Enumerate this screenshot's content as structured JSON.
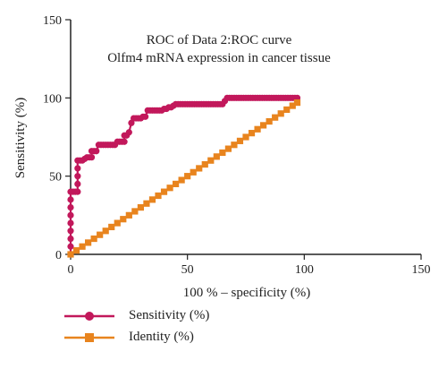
{
  "chart_data": {
    "type": "line",
    "title": [
      "ROC of Data 2:ROC curve",
      "Olfm4 mRNA expression in cancer tissue"
    ],
    "xlabel": "100 % – specificity (%)",
    "ylabel": "Sensitivity (%)",
    "xlim": [
      0,
      150
    ],
    "ylim": [
      0,
      150
    ],
    "x_ticks": [
      0,
      50,
      100,
      150
    ],
    "y_ticks": [
      0,
      50,
      100,
      150
    ],
    "grid": false,
    "legend_position": "bottom-left",
    "series": [
      {
        "name": "Sensitivity (%)",
        "color": "#c2185b",
        "marker": "circle",
        "points": [
          [
            0,
            0
          ],
          [
            0,
            5
          ],
          [
            0,
            10
          ],
          [
            0,
            15
          ],
          [
            0,
            20
          ],
          [
            0,
            25
          ],
          [
            0,
            30
          ],
          [
            0,
            35
          ],
          [
            0,
            40
          ],
          [
            1,
            40
          ],
          [
            2,
            40
          ],
          [
            3,
            40
          ],
          [
            3,
            45
          ],
          [
            3,
            50
          ],
          [
            3,
            55
          ],
          [
            3,
            60
          ],
          [
            4,
            60
          ],
          [
            5,
            60
          ],
          [
            6,
            61
          ],
          [
            7,
            62
          ],
          [
            8,
            62
          ],
          [
            9,
            62
          ],
          [
            9,
            66
          ],
          [
            10,
            66
          ],
          [
            11,
            66
          ],
          [
            12,
            70
          ],
          [
            13,
            70
          ],
          [
            14,
            70
          ],
          [
            15,
            70
          ],
          [
            16,
            70
          ],
          [
            17,
            70
          ],
          [
            18,
            70
          ],
          [
            19,
            70
          ],
          [
            20,
            72
          ],
          [
            21,
            72
          ],
          [
            22,
            72
          ],
          [
            23,
            72
          ],
          [
            23,
            76
          ],
          [
            24,
            76
          ],
          [
            25,
            78
          ],
          [
            26,
            84
          ],
          [
            27,
            87
          ],
          [
            28,
            87
          ],
          [
            29,
            87
          ],
          [
            30,
            87
          ],
          [
            31,
            88
          ],
          [
            32,
            88
          ],
          [
            33,
            92
          ],
          [
            34,
            92
          ],
          [
            35,
            92
          ],
          [
            36,
            92
          ],
          [
            37,
            92
          ],
          [
            38,
            92
          ],
          [
            39,
            92
          ],
          [
            40,
            93
          ],
          [
            41,
            93
          ],
          [
            42,
            94
          ],
          [
            43,
            94
          ],
          [
            44,
            95
          ],
          [
            45,
            96
          ],
          [
            46,
            96
          ],
          [
            47,
            96
          ],
          [
            48,
            96
          ],
          [
            49,
            96
          ],
          [
            50,
            96
          ],
          [
            51,
            96
          ],
          [
            52,
            96
          ],
          [
            53,
            96
          ],
          [
            54,
            96
          ],
          [
            55,
            96
          ],
          [
            56,
            96
          ],
          [
            57,
            96
          ],
          [
            58,
            96
          ],
          [
            59,
            96
          ],
          [
            60,
            96
          ],
          [
            61,
            96
          ],
          [
            62,
            96
          ],
          [
            63,
            96
          ],
          [
            64,
            96
          ],
          [
            65,
            96
          ],
          [
            66,
            98
          ],
          [
            67,
            100
          ],
          [
            68,
            100
          ],
          [
            69,
            100
          ],
          [
            70,
            100
          ],
          [
            71,
            100
          ],
          [
            72,
            100
          ],
          [
            73,
            100
          ],
          [
            74,
            100
          ],
          [
            75,
            100
          ],
          [
            76,
            100
          ],
          [
            77,
            100
          ],
          [
            78,
            100
          ],
          [
            79,
            100
          ],
          [
            80,
            100
          ],
          [
            81,
            100
          ],
          [
            82,
            100
          ],
          [
            83,
            100
          ],
          [
            84,
            100
          ],
          [
            85,
            100
          ],
          [
            86,
            100
          ],
          [
            87,
            100
          ],
          [
            88,
            100
          ],
          [
            89,
            100
          ],
          [
            90,
            100
          ],
          [
            91,
            100
          ],
          [
            92,
            100
          ],
          [
            93,
            100
          ],
          [
            94,
            100
          ],
          [
            95,
            100
          ],
          [
            96,
            100
          ],
          [
            97,
            100
          ]
        ]
      },
      {
        "name": "Identity (%)",
        "color": "#e8841e",
        "marker": "square",
        "points": [
          [
            0,
            0
          ],
          [
            2.5,
            2.5
          ],
          [
            5,
            5
          ],
          [
            7.5,
            7.5
          ],
          [
            10,
            10
          ],
          [
            12.5,
            12.5
          ],
          [
            15,
            15
          ],
          [
            17.5,
            17.5
          ],
          [
            20,
            20
          ],
          [
            22.5,
            22.5
          ],
          [
            25,
            25
          ],
          [
            27.5,
            27.5
          ],
          [
            30,
            30
          ],
          [
            32.5,
            32.5
          ],
          [
            35,
            35
          ],
          [
            37.5,
            37.5
          ],
          [
            40,
            40
          ],
          [
            42.5,
            42.5
          ],
          [
            45,
            45
          ],
          [
            47.5,
            47.5
          ],
          [
            50,
            50
          ],
          [
            52.5,
            52.5
          ],
          [
            55,
            55
          ],
          [
            57.5,
            57.5
          ],
          [
            60,
            60
          ],
          [
            62.5,
            62.5
          ],
          [
            65,
            65
          ],
          [
            67.5,
            67.5
          ],
          [
            70,
            70
          ],
          [
            72.5,
            72.5
          ],
          [
            75,
            75
          ],
          [
            77.5,
            77.5
          ],
          [
            80,
            80
          ],
          [
            82.5,
            82.5
          ],
          [
            85,
            85
          ],
          [
            87.5,
            87.5
          ],
          [
            90,
            90
          ],
          [
            92.5,
            92.5
          ],
          [
            95,
            95
          ],
          [
            97,
            97
          ]
        ]
      }
    ]
  }
}
